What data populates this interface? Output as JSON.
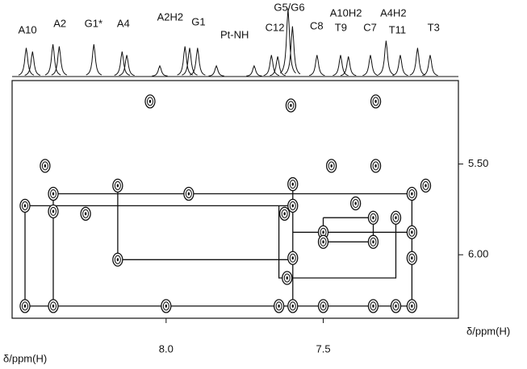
{
  "chart_data": {
    "type": "nmr-2d",
    "x_label": "δ/ppm(H)",
    "y_label": "δ/ppm(H)",
    "xlim": [
      8.49,
      7.07
    ],
    "ylim": [
      5.04,
      6.35
    ],
    "xticks": [
      {
        "value": 8,
        "label": "8.0"
      },
      7.5
    ],
    "yticks": [
      {
        "value": 5.5,
        "label": "5.50"
      },
      {
        "value": 6,
        "label": "6.00"
      }
    ],
    "color": "#111111",
    "peaks": [
      {
        "label": "A10",
        "x": 8.441
      },
      {
        "label": "A2",
        "x": 8.338
      },
      {
        "label": "G1*",
        "x": 8.231
      },
      {
        "label": "A4",
        "x": 8.136
      },
      {
        "label": "A2H2",
        "x": 7.987
      },
      {
        "label": "G1",
        "x": 7.897
      },
      {
        "label": "Pt-NH",
        "x": 7.782
      },
      {
        "label": "C12",
        "x": 7.654
      },
      {
        "label": "G5/G6",
        "x": 7.608
      },
      {
        "label": "C8",
        "x": 7.521
      },
      {
        "label": "A10H2",
        "x": 7.428
      },
      {
        "label": "T9",
        "x": 7.444
      },
      {
        "label": "C7",
        "x": 7.351
      },
      {
        "label": "A4H2",
        "x": 7.277
      },
      {
        "label": "T11",
        "x": 7.264
      },
      {
        "label": "T3",
        "x": 7.149
      }
    ],
    "trace": {
      "ylim": [
        0,
        1
      ],
      "x": [
        8.445,
        8.425,
        8.36,
        8.34,
        8.23,
        8.14,
        8.125,
        8.02,
        7.94,
        7.925,
        7.9,
        7.84,
        7.72,
        7.665,
        7.645,
        7.612,
        7.598,
        7.52,
        7.445,
        7.42,
        7.35,
        7.3,
        7.255,
        7.2,
        7.16
      ],
      "intensity": [
        0.4,
        0.35,
        0.45,
        0.42,
        0.45,
        0.35,
        0.3,
        0.15,
        0.42,
        0.4,
        0.4,
        0.15,
        0.15,
        0.3,
        0.28,
        0.95,
        0.7,
        0.3,
        0.3,
        0.28,
        0.3,
        0.5,
        0.3,
        0.4,
        0.3
      ]
    },
    "cross_peaks": {
      "x": [
        8.385,
        8.051,
        8.0,
        8.449,
        8.449,
        8.359,
        8.359,
        8.359,
        8.256,
        8.154,
        8.154,
        7.928,
        7.597,
        7.597,
        7.474,
        7.333,
        7.341,
        7.341,
        7.5,
        7.5,
        7.397,
        7.218,
        7.218,
        7.218,
        7.174,
        7.269,
        7.623,
        7.615,
        7.597,
        7.603,
        7.333,
        7.269,
        7.341,
        7.5,
        7.597,
        7.218,
        7.641
      ],
      "y": [
        5.51,
        5.155,
        6.283,
        5.73,
        6.283,
        5.664,
        6.283,
        5.761,
        5.774,
        5.619,
        6.027,
        5.664,
        5.73,
        5.611,
        5.51,
        5.51,
        5.796,
        5.929,
        5.876,
        5.929,
        5.717,
        5.664,
        6.018,
        6.283,
        5.619,
        5.796,
        5.774,
        6.128,
        6.018,
        5.177,
        5.155,
        6.283,
        6.283,
        6.283,
        6.283,
        5.876,
        6.283
      ]
    },
    "walk": {
      "x": [
        8.449,
        7.597,
        null,
        8.359,
        7.218,
        null,
        8.449,
        8.449,
        7.218,
        7.218,
        null,
        8.359,
        8.359,
        null,
        8.154,
        8.154,
        7.597,
        null,
        7.597,
        7.597,
        null,
        7.641,
        7.641,
        7.269,
        7.269,
        null,
        7.597,
        7.218,
        null,
        7.5,
        7.341,
        7.341,
        7.5,
        7.5
      ],
      "y": [
        5.73,
        5.73,
        null,
        5.664,
        5.664,
        null,
        5.73,
        6.283,
        6.283,
        5.664,
        null,
        5.664,
        6.283,
        null,
        5.611,
        6.027,
        6.027,
        null,
        5.611,
        6.283,
        null,
        5.73,
        6.128,
        6.128,
        5.796,
        null,
        5.876,
        5.876,
        null,
        5.796,
        5.796,
        5.929,
        5.929,
        5.796
      ]
    }
  }
}
